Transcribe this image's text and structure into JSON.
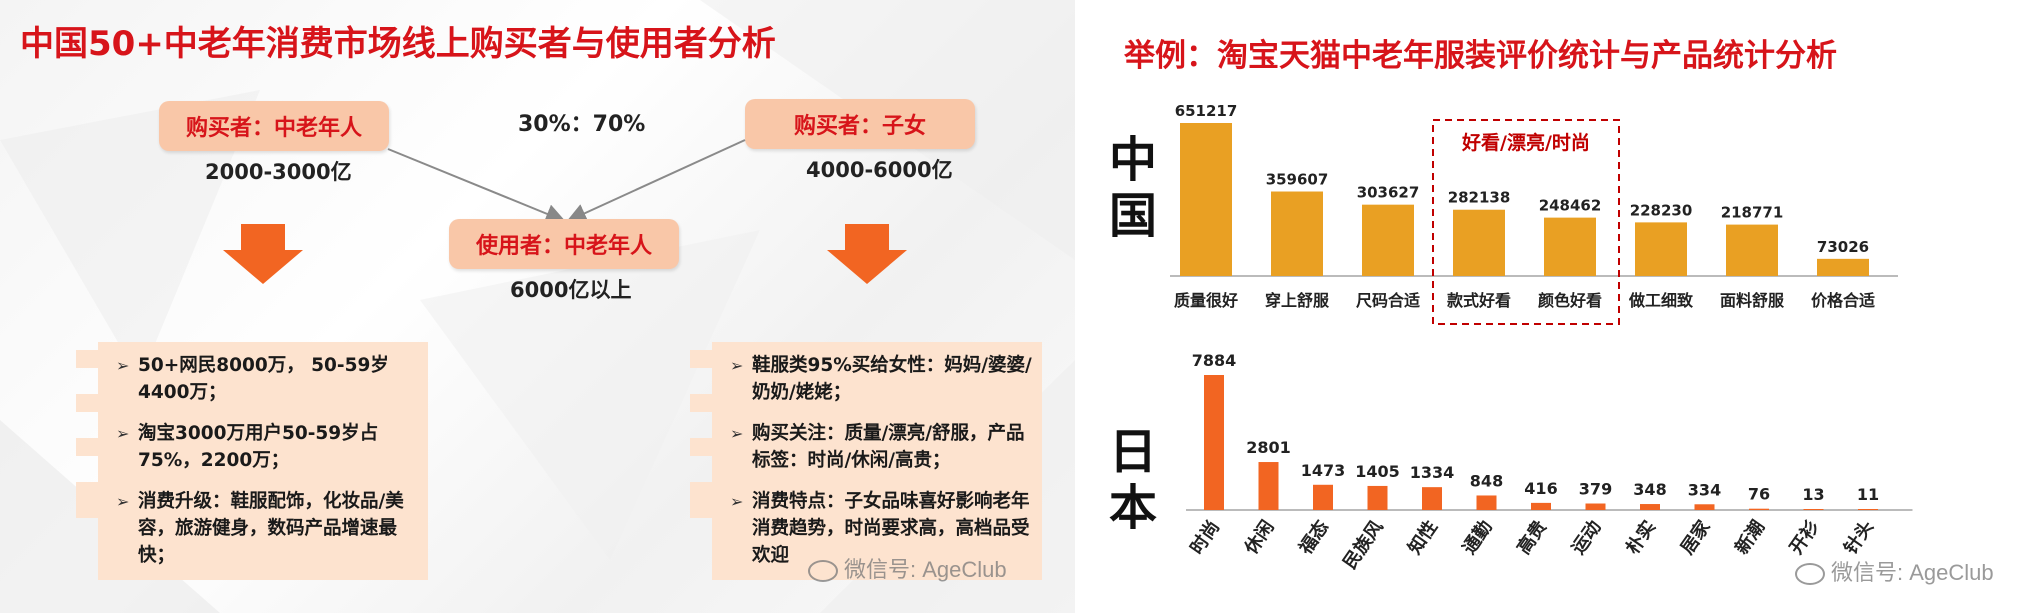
{
  "left": {
    "title": "中国50+中老年消费市场线上购买者与使用者分析",
    "buyer_elderly": {
      "label": "购买者：中老年人",
      "value": "2000-3000亿"
    },
    "ratio": "30%：70%",
    "buyer_children": {
      "label": "购买者：子女",
      "value": "4000-6000亿"
    },
    "user": {
      "label": "使用者：中老年人",
      "value": "6000亿以上"
    },
    "left_box": [
      "50+网民8000万， 50-59岁4400万；",
      "淘宝3000万用户50-59岁占75%，2200万；",
      "消费升级：鞋服配饰，化妆品/美容，旅游健身，数码产品增速最快；"
    ],
    "right_box": [
      "鞋服类95%买给女性：妈妈/婆婆/奶奶/姥姥；",
      "购买关注：质量/漂亮/舒服，产品标签：时尚/休闲/高贵；",
      "消费特点：子女品味喜好影响老年消费趋势，时尚要求高，高档品受欢迎"
    ],
    "watermark": "微信号: AgeClub"
  },
  "right": {
    "title": "举例：淘宝天猫中老年服装评价统计与产品统计分析",
    "china_label": "中国",
    "japan_label": "日本",
    "highlight_label": "好看/漂亮/时尚",
    "watermark": "微信号: AgeClub"
  },
  "colors": {
    "accent": "#d7141a",
    "china_bar": "#e9a023",
    "japan_bar": "#f26522",
    "pill": "#f9c7a8",
    "box": "#fde3cf",
    "arrow": "#f26522"
  },
  "chart_data": [
    {
      "type": "bar",
      "title": "中国",
      "categories": [
        "质量很好",
        "穿上舒服",
        "尺码合适",
        "款式好看",
        "颜色好看",
        "做工细致",
        "面料舒服",
        "价格合适"
      ],
      "values": [
        651217,
        359607,
        303627,
        282138,
        248462,
        228230,
        218771,
        73026
      ],
      "data_labels": [
        "651217",
        "359607",
        "303627",
        "282138",
        "248462",
        "228230",
        "218771",
        "73026"
      ],
      "ylim": [
        0,
        651217
      ],
      "grid": false,
      "highlight": {
        "categories": [
          "款式好看",
          "颜色好看"
        ],
        "label": "好看/漂亮/时尚"
      }
    },
    {
      "type": "bar",
      "title": "日本",
      "categories": [
        "时尚",
        "休闲",
        "福态",
        "民族风",
        "知性",
        "通勤",
        "高贵",
        "运动",
        "朴实",
        "居家",
        "新潮",
        "开衫",
        "针头"
      ],
      "values": [
        7884,
        2801,
        1473,
        1405,
        1334,
        848,
        416,
        379,
        348,
        334,
        76,
        13,
        11
      ],
      "data_labels": [
        "7884",
        "2801",
        "1473",
        "1405",
        "1334",
        "848",
        "416",
        "379",
        "348",
        "334",
        "76",
        "13",
        "11"
      ],
      "ylim": [
        0,
        7884
      ],
      "grid": false
    }
  ]
}
